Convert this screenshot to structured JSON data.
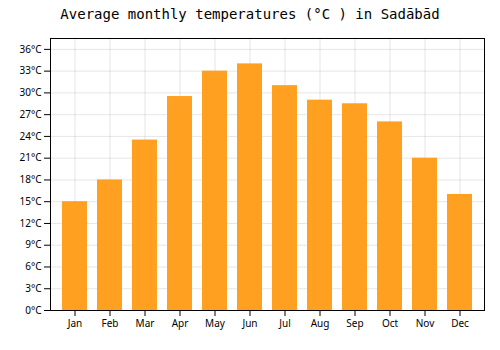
{
  "chart_data": {
    "type": "bar",
    "title": "Average monthly temperatures (°C ) in Sadābād",
    "categories": [
      "Jan",
      "Feb",
      "Mar",
      "Apr",
      "May",
      "Jun",
      "Jul",
      "Aug",
      "Sep",
      "Oct",
      "Nov",
      "Dec"
    ],
    "values": [
      15,
      18,
      23.5,
      29.5,
      33,
      34,
      31,
      29,
      28.5,
      26,
      21,
      16
    ],
    "color": "#FFA020",
    "ylim": [
      0,
      37.5
    ],
    "yticks": [
      {
        "value": 0,
        "label": "0°C"
      },
      {
        "value": 3,
        "label": "3°C"
      },
      {
        "value": 6,
        "label": "6°C"
      },
      {
        "value": 9,
        "label": "9°C"
      },
      {
        "value": 12,
        "label": "12°C"
      },
      {
        "value": 15,
        "label": "15°C"
      },
      {
        "value": 18,
        "label": "18°C"
      },
      {
        "value": 21,
        "label": "21°C"
      },
      {
        "value": 24,
        "label": "24°C"
      },
      {
        "value": 27,
        "label": "27°C"
      },
      {
        "value": 30,
        "label": "30°C"
      },
      {
        "value": 33,
        "label": "33°C"
      },
      {
        "value": 36,
        "label": "36°C"
      }
    ],
    "grid": true
  }
}
